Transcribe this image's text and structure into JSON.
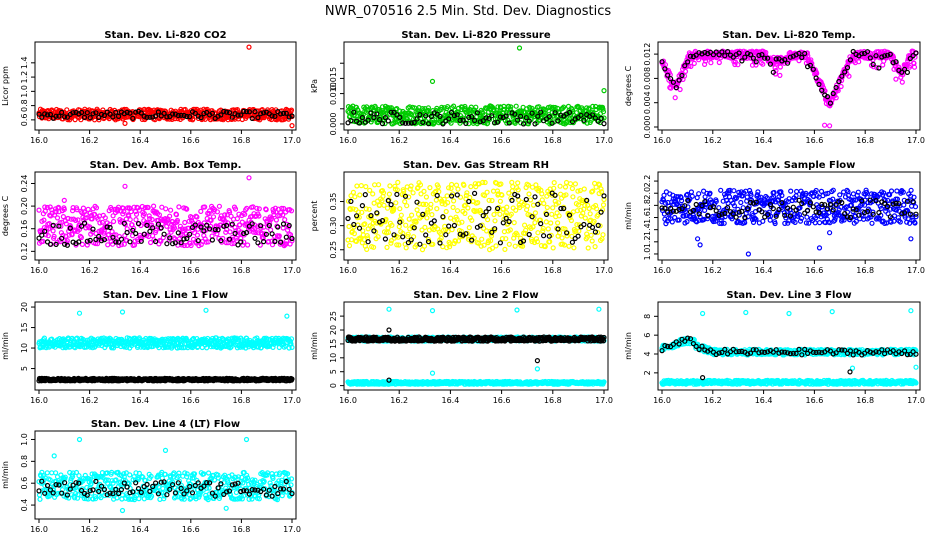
{
  "page_title": "NWR_070516  2.5 Min. Std. Dev. Diagnostics",
  "colors": {
    "red": "#ff0000",
    "green": "#00cc00",
    "magenta": "#ff00ff",
    "yellow": "#ffff00",
    "blue": "#0000ff",
    "cyan": "#00ffff",
    "black": "#000000"
  },
  "chart_data": [
    {
      "type": "scatter",
      "title": "Stan. Dev. Li-820 CO2",
      "ylabel": "Licor ppm",
      "xlim": [
        16.0,
        17.0
      ],
      "ylim": [
        0.5,
        1.65
      ],
      "xticks": [
        "16.0",
        "16.2",
        "16.4",
        "16.6",
        "16.8",
        "17.0"
      ],
      "yticks": [
        0.6,
        0.8,
        1.0,
        1.2,
        1.4
      ],
      "series": [
        {
          "color": "#ff0000",
          "band": [
            0.6,
            0.75
          ],
          "outliers": [
            [
              16.83,
              1.62
            ],
            [
              17.0,
              0.52
            ],
            [
              16.34,
              0.55
            ]
          ]
        },
        {
          "color": "#000000",
          "band": [
            0.62,
            0.72
          ],
          "sparse": true
        }
      ]
    },
    {
      "type": "scatter",
      "title": "Stan. Dev. Li-820 Pressure",
      "ylabel": "kPa",
      "xlim": [
        16.0,
        17.0
      ],
      "ylim": [
        -0.001,
        0.026
      ],
      "xticks": [
        "16.0",
        "16.2",
        "16.4",
        "16.6",
        "16.8",
        "17.0"
      ],
      "yticks": [
        0.0,
        0.005,
        0.01,
        0.015,
        0.02
      ],
      "ytick_labels": [
        "0.000",
        "",
        "0.010",
        "0.015",
        ""
      ],
      "series": [
        {
          "color": "#00cc00",
          "band": [
            0.0,
            0.006
          ],
          "outliers": [
            [
              16.33,
              0.014
            ],
            [
              16.67,
              0.025
            ],
            [
              17.0,
              0.011
            ]
          ]
        },
        {
          "color": "#000000",
          "band": [
            0.0,
            0.004
          ],
          "sparse": true
        }
      ]
    },
    {
      "type": "scatter",
      "title": "Stan. Dev. Li-820 Temp.",
      "ylabel": "degrees C",
      "xlim": [
        16.0,
        17.0
      ],
      "ylim": [
        0.0,
        0.0135
      ],
      "xticks": [
        "16.0",
        "16.2",
        "16.4",
        "16.6",
        "16.8",
        "17.0"
      ],
      "yticks": [
        0.0,
        0.004,
        0.008,
        0.012
      ],
      "ytick_labels": [
        "0.000",
        "0.004",
        "0.008",
        "0.012"
      ],
      "series": [
        {
          "color": "#ff00ff",
          "pattern": "temp",
          "outliers": [
            [
              16.64,
              0.0003
            ],
            [
              16.66,
              0.0002
            ]
          ]
        },
        {
          "color": "#000000",
          "pattern": "temp",
          "sparse": true
        }
      ]
    },
    {
      "type": "scatter",
      "title": "Stan. Dev. Amb. Box Temp.",
      "ylabel": "degrees C",
      "xlim": [
        16.0,
        17.0
      ],
      "ylim": [
        0.11,
        0.255
      ],
      "xticks": [
        "16.0",
        "16.2",
        "16.4",
        "16.6",
        "16.8",
        "17.0"
      ],
      "yticks": [
        0.12,
        0.16,
        0.2,
        0.24
      ],
      "ytick_labels": [
        "0.12",
        "0.16",
        "0.20",
        "0.24"
      ],
      "series": [
        {
          "color": "#ff00ff",
          "band": [
            0.13,
            0.2
          ],
          "outliers": [
            [
              16.34,
              0.235
            ],
            [
              16.83,
              0.25
            ],
            [
              16.1,
              0.21
            ]
          ]
        },
        {
          "color": "#000000",
          "band": [
            0.13,
            0.17
          ],
          "sparse": true
        }
      ]
    },
    {
      "type": "scatter",
      "title": "Stan. Dev. Gas Stream RH",
      "ylabel": "percent",
      "xlim": [
        16.0,
        17.0
      ],
      "ylim": [
        0.235,
        0.405
      ],
      "xticks": [
        "16.0",
        "16.2",
        "16.4",
        "16.6",
        "16.8",
        "17.0"
      ],
      "yticks": [
        0.25,
        0.3,
        0.35
      ],
      "ytick_labels": [
        "0.25",
        "0.30",
        "0.35"
      ],
      "series": [
        {
          "color": "#ffff00",
          "band": [
            0.25,
            0.39
          ]
        },
        {
          "color": "#000000",
          "band": [
            0.26,
            0.37
          ],
          "sparse": true
        }
      ]
    },
    {
      "type": "scatter",
      "title": "Stan. Dev. Sample Flow",
      "ylabel": "ml/min",
      "xlim": [
        16.0,
        17.0
      ],
      "ylim": [
        0.95,
        2.3
      ],
      "xticks": [
        "16.0",
        "16.2",
        "16.4",
        "16.6",
        "16.8",
        "17.0"
      ],
      "yticks": [
        1.0,
        1.2,
        1.4,
        1.6,
        1.8,
        2.0,
        2.2
      ],
      "ytick_labels": [
        "1.0",
        "1.2",
        "1.4",
        "1.6",
        "1.8",
        "2.0",
        "2.2"
      ],
      "series": [
        {
          "color": "#0000ff",
          "band": [
            1.5,
            2.05
          ],
          "outliers": [
            [
              16.14,
              1.25
            ],
            [
              16.15,
              1.15
            ],
            [
              16.34,
              1.0
            ],
            [
              16.62,
              1.1
            ],
            [
              16.66,
              1.35
            ],
            [
              16.98,
              1.25
            ]
          ]
        },
        {
          "color": "#000000",
          "band": [
            1.6,
            1.9
          ],
          "sparse": true
        }
      ]
    },
    {
      "type": "scatter",
      "title": "Stan. Dev. Line 1 Flow",
      "ylabel": "ml/min",
      "xlim": [
        16.0,
        17.0
      ],
      "ylim": [
        0.5,
        20.5
      ],
      "xticks": [
        "16.0",
        "16.2",
        "16.4",
        "16.6",
        "16.8",
        "17.0"
      ],
      "yticks": [
        5,
        10,
        15,
        20
      ],
      "ytick_labels": [
        "5",
        "10",
        "15",
        "20"
      ],
      "series": [
        {
          "color": "#00ffff",
          "band": [
            10.0,
            12.5
          ],
          "outliers": [
            [
              16.16,
              18.5
            ],
            [
              16.33,
              18.8
            ],
            [
              16.66,
              19.2
            ],
            [
              16.98,
              17.8
            ]
          ]
        },
        {
          "color": "#000000",
          "band": [
            2.0,
            2.6
          ]
        }
      ]
    },
    {
      "type": "scatter",
      "title": "Stan. Dev. Line 2 Flow",
      "ylabel": "ml/min",
      "xlim": [
        16.0,
        17.0
      ],
      "ylim": [
        -0.5,
        29
      ],
      "xticks": [
        "16.0",
        "16.2",
        "16.4",
        "16.6",
        "16.8",
        "17.0"
      ],
      "yticks": [
        0,
        5,
        10,
        15,
        20,
        25
      ],
      "ytick_labels": [
        "0",
        "5",
        "10",
        "15",
        "20",
        "25"
      ],
      "series": [
        {
          "color": "#00ffff",
          "band": [
            16.0,
            17.5
          ],
          "outliers": [
            [
              16.16,
              27.5
            ],
            [
              16.33,
              27.0
            ],
            [
              16.66,
              27.2
            ],
            [
              16.98,
              27.5
            ],
            [
              16.33,
              4.5
            ],
            [
              16.74,
              6.0
            ]
          ]
        },
        {
          "color": "#00ffff",
          "band": [
            0.5,
            1.5
          ]
        },
        {
          "color": "#000000",
          "band": [
            16.0,
            17.5
          ],
          "outliers": [
            [
              16.16,
              20.0
            ],
            [
              16.74,
              9.0
            ],
            [
              16.16,
              2.0
            ]
          ]
        }
      ]
    },
    {
      "type": "scatter",
      "title": "Stan. Dev. Line 3 Flow",
      "ylabel": "ml/min",
      "xlim": [
        16.0,
        17.0
      ],
      "ylim": [
        0.5,
        9.2
      ],
      "xticks": [
        "16.0",
        "16.2",
        "16.4",
        "16.6",
        "16.8",
        "17.0"
      ],
      "yticks": [
        2,
        4,
        6,
        8
      ],
      "ytick_labels": [
        "2",
        "4",
        "6",
        "8"
      ],
      "series": [
        {
          "color": "#00ffff",
          "pattern": "line3",
          "outliers": [
            [
              16.16,
              8.3
            ],
            [
              16.33,
              8.4
            ],
            [
              16.5,
              8.3
            ],
            [
              16.67,
              8.5
            ],
            [
              16.98,
              8.6
            ],
            [
              16.75,
              2.5
            ],
            [
              17.0,
              2.6
            ]
          ]
        },
        {
          "color": "#00ffff",
          "band": [
            0.8,
            1.2
          ]
        },
        {
          "color": "#000000",
          "pattern": "line3",
          "sparse": true,
          "outliers": [
            [
              16.16,
              1.5
            ],
            [
              16.74,
              2.1
            ]
          ]
        }
      ]
    },
    {
      "type": "scatter",
      "title": "Stan. Dev. Line 4 (LT) Flow",
      "ylabel": "ml/min",
      "xlim": [
        16.0,
        17.0
      ],
      "ylim": [
        0.3,
        1.05
      ],
      "xticks": [
        "16.0",
        "16.2",
        "16.4",
        "16.6",
        "16.8",
        "17.0"
      ],
      "yticks": [
        0.4,
        0.6,
        0.8,
        1.0
      ],
      "ytick_labels": [
        "0.4",
        "0.6",
        "0.8",
        "1.0"
      ],
      "series": [
        {
          "color": "#00ffff",
          "band": [
            0.45,
            0.7
          ],
          "outliers": [
            [
              16.06,
              0.85
            ],
            [
              16.16,
              1.0
            ],
            [
              16.5,
              0.9
            ],
            [
              16.82,
              1.0
            ],
            [
              16.33,
              0.35
            ],
            [
              16.74,
              0.37
            ]
          ]
        },
        {
          "color": "#000000",
          "band": [
            0.48,
            0.62
          ],
          "sparse": true
        }
      ]
    }
  ]
}
